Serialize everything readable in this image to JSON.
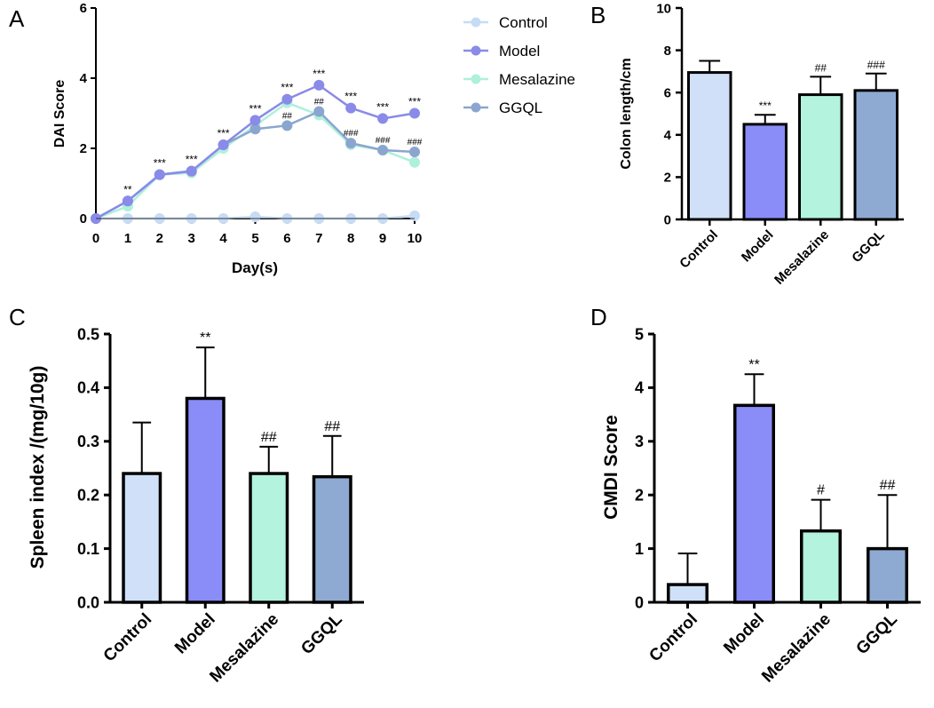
{
  "panels": [
    "A",
    "B",
    "C",
    "D"
  ],
  "colors": {
    "control": "#cfe0f8",
    "model": "#8a8cf7",
    "mesalazine": "#b4f3de",
    "ggql": "#8eaad2",
    "control_line": "#c6dcf6",
    "model_line": "#8a8ae8",
    "mesalazine_line": "#aef0dc",
    "ggql_line": "#8aa6cf"
  },
  "chart_data": [
    {
      "id": "A",
      "type": "line",
      "xlabel": "Day(s)",
      "ylabel": "DAI Score",
      "x": [
        0,
        1,
        2,
        3,
        4,
        5,
        6,
        7,
        8,
        9,
        10
      ],
      "xlim": [
        0,
        10
      ],
      "ylim": [
        0,
        6
      ],
      "xticks": [
        "0",
        "1",
        "2",
        "3",
        "4",
        "5",
        "6",
        "7",
        "8",
        "9",
        "10"
      ],
      "yticks": [
        "0",
        "2",
        "4",
        "6"
      ],
      "series": [
        {
          "name": "Control",
          "color_key": "control_line",
          "values": [
            0,
            0,
            0,
            0,
            0,
            0.05,
            0,
            0,
            0,
            0,
            0.08
          ]
        },
        {
          "name": "Mesalazine",
          "color_key": "mesalazine_line",
          "values": [
            0,
            0.35,
            1.25,
            1.3,
            2.0,
            2.65,
            3.3,
            2.95,
            2.1,
            1.95,
            1.6
          ]
        },
        {
          "name": "GGQL",
          "color_key": "ggql_line",
          "values": [
            0,
            0.5,
            1.25,
            1.35,
            2.1,
            2.55,
            2.65,
            3.05,
            2.15,
            1.95,
            1.9
          ]
        },
        {
          "name": "Model",
          "color_key": "model_line",
          "values": [
            0,
            0.5,
            1.25,
            1.35,
            2.1,
            2.8,
            3.4,
            3.8,
            3.15,
            2.85,
            3.0
          ]
        }
      ],
      "legend": [
        "Control",
        "Model",
        "Mesalazine",
        "GGQL"
      ],
      "annotations_model": [
        "",
        "**",
        "***",
        "***",
        "***",
        "***",
        "***",
        "***",
        "***",
        "***",
        "***"
      ],
      "annotations_ggql": [
        "",
        "",
        "",
        "",
        "",
        "",
        "##",
        "##",
        "###",
        "###",
        "###"
      ]
    },
    {
      "id": "B",
      "type": "bar",
      "ylabel": "Colon length/cm",
      "categories": [
        "Control",
        "Model",
        "Mesalazine",
        "GGQL"
      ],
      "values": [
        6.95,
        4.5,
        5.9,
        6.1
      ],
      "errors": [
        0.55,
        0.45,
        0.85,
        0.8
      ],
      "ylim": [
        0,
        10
      ],
      "yticks": [
        "0",
        "2",
        "4",
        "6",
        "8",
        "10"
      ],
      "annotations": [
        "",
        "***",
        "##",
        "###"
      ]
    },
    {
      "id": "C",
      "type": "bar",
      "ylabel": "Spleen index /(mg/10g)",
      "categories": [
        "Control",
        "Model",
        "Mesalazine",
        "GGQL"
      ],
      "values": [
        0.24,
        0.38,
        0.24,
        0.234
      ],
      "errors": [
        0.095,
        0.095,
        0.05,
        0.076
      ],
      "ylim": [
        0,
        0.5
      ],
      "yticks": [
        "0.0",
        "0.1",
        "0.2",
        "0.3",
        "0.4",
        "0.5"
      ],
      "annotations": [
        "",
        "**",
        "##",
        "##"
      ]
    },
    {
      "id": "D",
      "type": "bar",
      "ylabel": "CMDI Score",
      "categories": [
        "Control",
        "Model",
        "Mesalazine",
        "GGQL"
      ],
      "values": [
        0.33,
        3.67,
        1.33,
        1.0
      ],
      "errors": [
        0.58,
        0.58,
        0.58,
        1.0
      ],
      "ylim": [
        0,
        5
      ],
      "yticks": [
        "0",
        "1",
        "2",
        "3",
        "4",
        "5"
      ],
      "annotations": [
        "",
        "**",
        "#",
        "##"
      ]
    }
  ]
}
